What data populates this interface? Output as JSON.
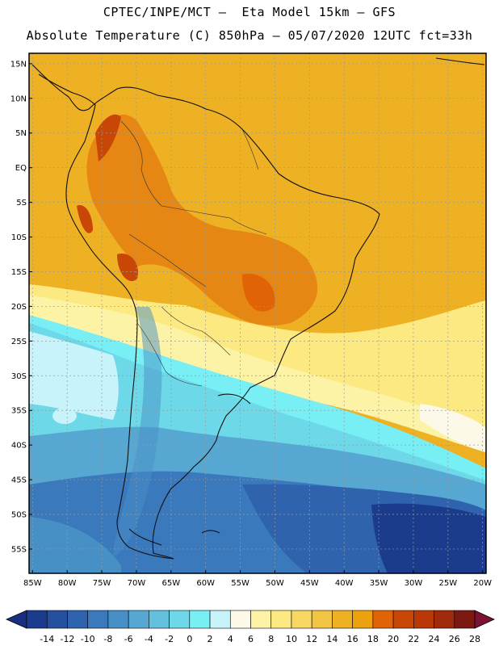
{
  "header": {
    "line1": "CPTEC/INPE/MCT –  Eta Model 15km – GFS",
    "line2": "Absolute Temperature (C) 850hPa – 05/07/2020 12UTC fct=33h"
  },
  "axes": {
    "lat_labels": [
      "15N",
      "10N",
      "5N",
      "EQ",
      "5S",
      "10S",
      "15S",
      "20S",
      "25S",
      "30S",
      "35S",
      "40S",
      "45S",
      "50S",
      "55S"
    ],
    "lon_labels": [
      "85W",
      "80W",
      "75W",
      "70W",
      "65W",
      "60W",
      "55W",
      "50W",
      "45W",
      "40W",
      "35W",
      "30W",
      "25W",
      "20W"
    ],
    "lat_values": [
      15,
      10,
      5,
      0,
      -5,
      -10,
      -15,
      -20,
      -25,
      -30,
      -35,
      -40,
      -45,
      -50,
      -55
    ],
    "lon_values": [
      -85,
      -80,
      -75,
      -70,
      -65,
      -60,
      -55,
      -50,
      -45,
      -40,
      -35,
      -30,
      -25,
      -20
    ],
    "extent": {
      "lon_min": -85.5,
      "lon_max": -19.5,
      "lat_min": -58.5,
      "lat_max": 16.5
    }
  },
  "colorbar": {
    "labels": [
      "-14",
      "-12",
      "-10",
      "-8",
      "-6",
      "-4",
      "-2",
      "0",
      "2",
      "4",
      "6",
      "8",
      "10",
      "12",
      "14",
      "16",
      "18",
      "20",
      "22",
      "24",
      "26",
      "28"
    ],
    "colors": [
      "#1b3b8c",
      "#25509f",
      "#2f63ae",
      "#3a79bc",
      "#4790c6",
      "#56a8d2",
      "#63c1de",
      "#6cd8e8",
      "#78eef5",
      "#c8f3fb",
      "#fdf9e8",
      "#fdf3a6",
      "#fde982",
      "#f8d862",
      "#f2c443",
      "#eeb124",
      "#eca10f",
      "#e06306",
      "#c94706",
      "#b83808",
      "#a12a0c",
      "#7c1a11"
    ],
    "under_color": "#1b2f80",
    "over_color": "#7e1232",
    "units": "C"
  },
  "legend": {
    "map_colors": {
      "deep_ocean": "#1b3b8c",
      "mid_ocean": "#3a79bc",
      "cyan_sea": "#6cd8e8",
      "warm_land": "#eca10f",
      "hot_land": "#e06306",
      "yellow_band": "#fde982"
    }
  }
}
